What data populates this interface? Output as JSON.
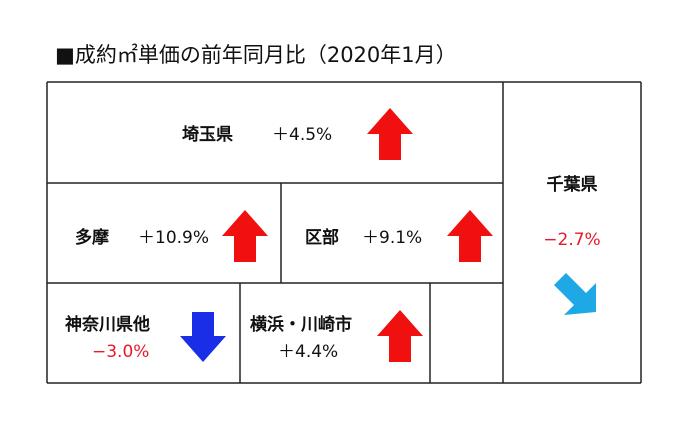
{
  "title": "■成約㎡単価の前年同月比（2020年1月）",
  "regions": [
    {
      "name": "埼玉県",
      "change": "＋4.5%"
    },
    {
      "name": "千葉県",
      "change": "−2.7%"
    },
    {
      "name": "多摩",
      "change": "＋10.9%"
    },
    {
      "name": "区部",
      "change": "＋9.1%"
    },
    {
      "name": "神奈川県他",
      "change": "−3.0%"
    },
    {
      "name": "横浜・川崎市",
      "change": "＋4.4%"
    }
  ]
}
